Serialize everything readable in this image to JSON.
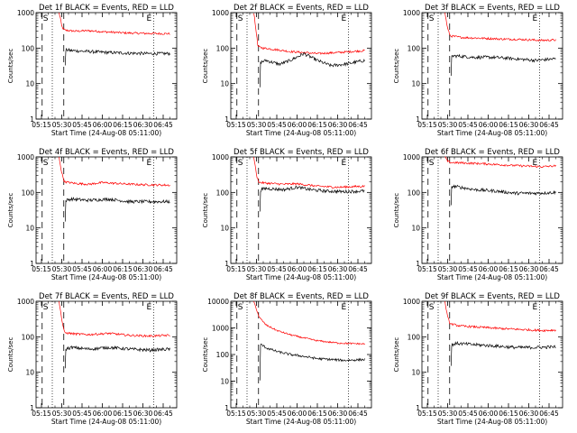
{
  "chart_data": {
    "type": "line",
    "x_tick_labels": [
      "05:15",
      "05:30",
      "05:45",
      "06:00",
      "06:15",
      "06:30",
      "06:45"
    ],
    "x_tick_minutes": [
      0,
      15,
      30,
      45,
      60,
      75,
      90
    ],
    "x_range_minutes": [
      -4,
      100
    ],
    "xlabel": "Start Time (24-Aug-08 05:11:00)",
    "ylabel": "Counts/sec",
    "y_scale": "log",
    "colors": {
      "events": "#000000",
      "lld": "#ff0000",
      "axis": "#000000"
    },
    "panels": [
      {
        "title": "Det 1f BLACK = Events, RED = LLD",
        "ylim": [
          1,
          1000
        ],
        "y_tick_labels": [
          "1",
          "10",
          "100",
          "1000"
        ],
        "markers": [
          "S",
          "E"
        ],
        "vlines_dotted": [
          8,
          83
        ],
        "vlines_dashed": [
          0.5,
          16.5
        ],
        "events": [
          [
            17.5,
            30
          ],
          [
            18,
            90
          ],
          [
            22,
            85
          ],
          [
            35,
            80
          ],
          [
            50,
            75
          ],
          [
            65,
            72
          ],
          [
            80,
            70
          ],
          [
            95,
            70
          ]
        ],
        "lld": [
          [
            13,
            1000
          ],
          [
            14,
            700
          ],
          [
            15,
            400
          ],
          [
            17,
            320
          ],
          [
            25,
            300
          ],
          [
            35,
            310
          ],
          [
            45,
            290
          ],
          [
            60,
            270
          ],
          [
            75,
            260
          ],
          [
            95,
            255
          ]
        ]
      },
      {
        "title": "Det 2f BLACK = Events, RED = LLD",
        "ylim": [
          1,
          1000
        ],
        "y_tick_labels": [
          "1",
          "10",
          "100",
          "1000"
        ],
        "markers": [
          "S",
          "E"
        ],
        "vlines_dotted": [
          8,
          83
        ],
        "vlines_dashed": [
          0.5,
          16.5
        ],
        "events": [
          [
            17.5,
            8
          ],
          [
            18,
            40
          ],
          [
            22,
            45
          ],
          [
            32,
            35
          ],
          [
            40,
            45
          ],
          [
            50,
            70
          ],
          [
            60,
            45
          ],
          [
            70,
            32
          ],
          [
            80,
            35
          ],
          [
            95,
            45
          ]
        ],
        "lld": [
          [
            13,
            1000
          ],
          [
            14,
            500
          ],
          [
            15,
            250
          ],
          [
            16,
            110
          ],
          [
            20,
            100
          ],
          [
            30,
            90
          ],
          [
            40,
            80
          ],
          [
            50,
            75
          ],
          [
            60,
            70
          ],
          [
            75,
            75
          ],
          [
            95,
            85
          ]
        ]
      },
      {
        "title": "Det 3f BLACK = Events, RED = LLD",
        "ylim": [
          1,
          1000
        ],
        "y_tick_labels": [
          "1",
          "10",
          "100",
          "1000"
        ],
        "markers": [
          "S",
          "E"
        ],
        "vlines_dotted": [
          8,
          83
        ],
        "vlines_dashed": [
          0.5,
          16.5
        ],
        "events": [
          [
            17.5,
            15
          ],
          [
            18,
            60
          ],
          [
            22,
            60
          ],
          [
            35,
            55
          ],
          [
            50,
            55
          ],
          [
            65,
            50
          ],
          [
            80,
            45
          ],
          [
            95,
            50
          ]
        ],
        "lld": [
          [
            13,
            1000
          ],
          [
            14,
            600
          ],
          [
            15,
            350
          ],
          [
            17,
            220
          ],
          [
            25,
            200
          ],
          [
            40,
            190
          ],
          [
            55,
            180
          ],
          [
            70,
            175
          ],
          [
            85,
            165
          ],
          [
            95,
            170
          ]
        ]
      },
      {
        "title": "Det 4f BLACK = Events, RED = LLD",
        "ylim": [
          1,
          1000
        ],
        "y_tick_labels": [
          "1",
          "10",
          "100",
          "1000"
        ],
        "markers": [
          "S",
          "E"
        ],
        "vlines_dotted": [
          8,
          83
        ],
        "vlines_dashed": [
          0.5,
          16.5
        ],
        "events": [
          [
            17.5,
            15
          ],
          [
            18,
            60
          ],
          [
            22,
            65
          ],
          [
            35,
            60
          ],
          [
            50,
            65
          ],
          [
            65,
            55
          ],
          [
            80,
            55
          ],
          [
            95,
            55
          ]
        ],
        "lld": [
          [
            13,
            1000
          ],
          [
            14,
            600
          ],
          [
            15,
            350
          ],
          [
            17,
            200
          ],
          [
            25,
            180
          ],
          [
            35,
            170
          ],
          [
            45,
            190
          ],
          [
            60,
            175
          ],
          [
            75,
            165
          ],
          [
            95,
            160
          ]
        ]
      },
      {
        "title": "Det 5f BLACK = Events, RED = LLD",
        "ylim": [
          1,
          1000
        ],
        "y_tick_labels": [
          "1",
          "10",
          "100",
          "1000"
        ],
        "markers": [
          "S",
          "E"
        ],
        "vlines_dotted": [
          8,
          83
        ],
        "vlines_dashed": [
          0.5,
          16.5
        ],
        "events": [
          [
            17.5,
            30
          ],
          [
            18,
            120
          ],
          [
            22,
            130
          ],
          [
            35,
            120
          ],
          [
            45,
            140
          ],
          [
            55,
            120
          ],
          [
            65,
            110
          ],
          [
            80,
            105
          ],
          [
            95,
            110
          ]
        ],
        "lld": [
          [
            13,
            1000
          ],
          [
            14,
            600
          ],
          [
            15,
            300
          ],
          [
            17,
            190
          ],
          [
            25,
            180
          ],
          [
            35,
            170
          ],
          [
            45,
            175
          ],
          [
            60,
            150
          ],
          [
            75,
            140
          ],
          [
            95,
            150
          ]
        ]
      },
      {
        "title": "Det 6f BLACK = Events, RED = LLD",
        "ylim": [
          1,
          1000
        ],
        "y_tick_labels": [
          "1",
          "10",
          "100",
          "1000"
        ],
        "markers": [
          "S",
          "E"
        ],
        "vlines_dotted": [
          8,
          83
        ],
        "vlines_dashed": [
          0.5,
          16.5
        ],
        "events": [
          [
            17.5,
            40
          ],
          [
            18,
            150
          ],
          [
            22,
            145
          ],
          [
            35,
            120
          ],
          [
            50,
            110
          ],
          [
            65,
            95
          ],
          [
            80,
            95
          ],
          [
            95,
            100
          ]
        ],
        "lld": [
          [
            13,
            1000
          ],
          [
            14,
            900
          ],
          [
            15,
            750
          ],
          [
            17,
            700
          ],
          [
            25,
            680
          ],
          [
            40,
            650
          ],
          [
            55,
            600
          ],
          [
            70,
            560
          ],
          [
            85,
            530
          ],
          [
            95,
            560
          ]
        ]
      },
      {
        "title": "Det 7f BLACK = Events, RED = LLD",
        "ylim": [
          1,
          1000
        ],
        "y_tick_labels": [
          "1",
          "10",
          "100",
          "1000"
        ],
        "markers": [
          "S",
          "E"
        ],
        "vlines_dotted": [
          8,
          83
        ],
        "vlines_dashed": [
          0.5,
          16.5
        ],
        "events": [
          [
            17.5,
            12
          ],
          [
            18,
            45
          ],
          [
            22,
            50
          ],
          [
            35,
            45
          ],
          [
            50,
            50
          ],
          [
            65,
            45
          ],
          [
            80,
            42
          ],
          [
            95,
            45
          ]
        ],
        "lld": [
          [
            13,
            1000
          ],
          [
            14,
            600
          ],
          [
            15,
            300
          ],
          [
            17,
            130
          ],
          [
            25,
            120
          ],
          [
            35,
            115
          ],
          [
            50,
            125
          ],
          [
            65,
            110
          ],
          [
            80,
            105
          ],
          [
            95,
            110
          ]
        ]
      },
      {
        "title": "Det 8f BLACK = Events, RED = LLD",
        "ylim": [
          1,
          10000
        ],
        "y_tick_labels": [
          "1",
          "10",
          "100",
          "1000",
          "10000"
        ],
        "markers": [
          "S",
          "E"
        ],
        "vlines_dotted": [
          8,
          83
        ],
        "vlines_dashed": [
          0.5,
          16.5
        ],
        "events": [
          [
            17.5,
            10
          ],
          [
            18,
            250
          ],
          [
            22,
            180
          ],
          [
            30,
            130
          ],
          [
            40,
            100
          ],
          [
            50,
            85
          ],
          [
            60,
            70
          ],
          [
            70,
            65
          ],
          [
            80,
            60
          ],
          [
            95,
            65
          ]
        ],
        "lld": [
          [
            13,
            10000
          ],
          [
            14,
            7000
          ],
          [
            15,
            5000
          ],
          [
            17,
            2500
          ],
          [
            22,
            1300
          ],
          [
            30,
            800
          ],
          [
            40,
            550
          ],
          [
            50,
            420
          ],
          [
            60,
            330
          ],
          [
            75,
            270
          ],
          [
            95,
            250
          ]
        ]
      },
      {
        "title": "Det 9f BLACK = Events, RED = LLD",
        "ylim": [
          1,
          1000
        ],
        "y_tick_labels": [
          "1",
          "10",
          "100",
          "1000"
        ],
        "markers": [
          "S",
          "E"
        ],
        "vlines_dotted": [
          8,
          83
        ],
        "vlines_dashed": [
          0.5,
          16.5
        ],
        "events": [
          [
            17.5,
            15
          ],
          [
            18,
            60
          ],
          [
            22,
            65
          ],
          [
            35,
            60
          ],
          [
            50,
            55
          ],
          [
            65,
            50
          ],
          [
            80,
            50
          ],
          [
            95,
            52
          ]
        ],
        "lld": [
          [
            13,
            1000
          ],
          [
            14,
            600
          ],
          [
            15,
            350
          ],
          [
            17,
            230
          ],
          [
            25,
            200
          ],
          [
            40,
            185
          ],
          [
            55,
            170
          ],
          [
            70,
            160
          ],
          [
            85,
            150
          ],
          [
            95,
            155
          ]
        ]
      }
    ]
  }
}
